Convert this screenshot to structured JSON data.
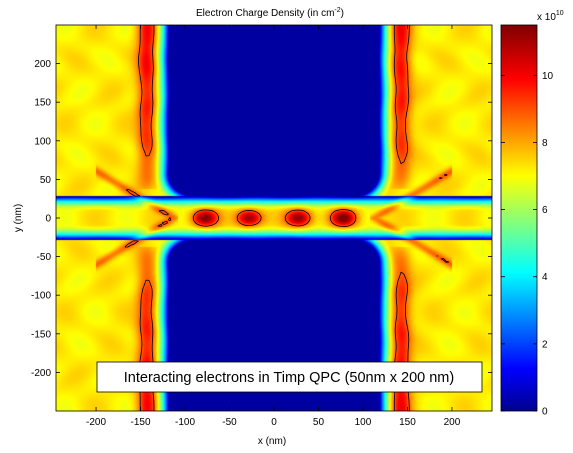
{
  "chart_data": {
    "type": "heatmap",
    "title": "Electron Charge Density (in cm",
    "title_exponent": "-2",
    "title_close": ")",
    "xlabel": "x (nm)",
    "ylabel": "y (nm)",
    "xlim": [
      -245,
      245
    ],
    "ylim": [
      -250,
      250
    ],
    "x_ticks": [
      -200,
      -150,
      -100,
      -50,
      0,
      50,
      100,
      150,
      200
    ],
    "y_ticks": [
      200,
      150,
      100,
      50,
      0,
      -50,
      -100,
      -150,
      -200
    ],
    "colorbar": {
      "range": [
        0,
        11.5
      ],
      "ticks": [
        0,
        2,
        4,
        6,
        8,
        10
      ],
      "multiplier_base": "x 10",
      "multiplier_exponent": "10",
      "colormap": "jet"
    },
    "annotation": "Interacting electrons in Timp QPC (50nm x 200 nm)",
    "features": {
      "depleted_regions_value": 0.2,
      "background_value": 7.2,
      "channel_maxima": [
        {
          "x": -78,
          "y": 0,
          "value": 11.5
        },
        {
          "x": -28,
          "y": 0,
          "value": 11.5
        },
        {
          "x": 28,
          "y": 0,
          "value": 11.5
        },
        {
          "x": 78,
          "y": 0,
          "value": 11.5
        }
      ],
      "edge_ridge_x": [
        -143,
        143
      ],
      "edge_ridge_value": 9.8,
      "gate_x_half_width": 118,
      "gate_gap_y_half_width": 28
    }
  }
}
